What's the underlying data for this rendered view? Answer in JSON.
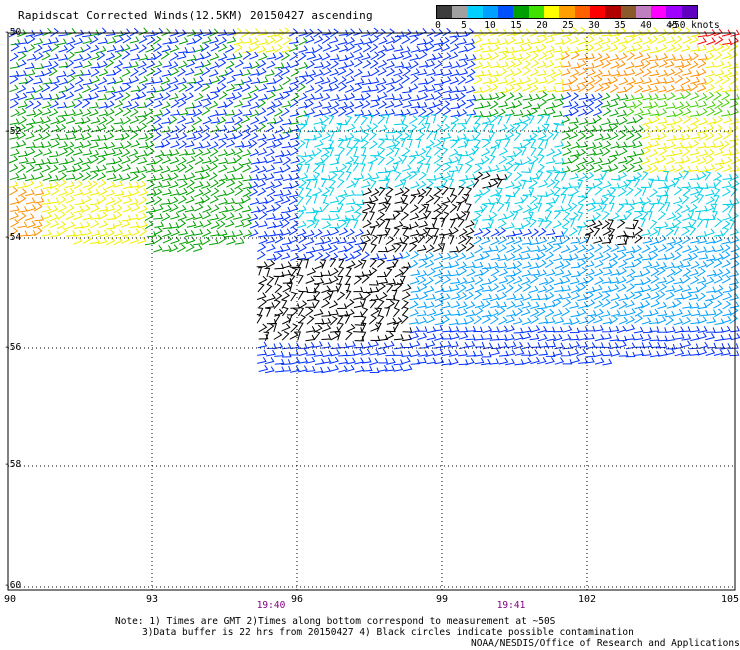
{
  "title": "Rapidscat Corrected Winds(12.5KM) 20150427 ascending",
  "scale": {
    "colors": [
      "#3c3c3c",
      "#a0a0a0",
      "#00d0ff",
      "#00a0ff",
      "#0050ff",
      "#00a000",
      "#40e000",
      "#ffff00",
      "#ffa000",
      "#ff6000",
      "#ff0000",
      "#b00000",
      "#8b5a2b",
      "#c080c0",
      "#ff00ff",
      "#a000ff",
      "#6000c0"
    ],
    "labels": [
      "0",
      "5",
      "10",
      "15",
      "20",
      "25",
      "30",
      "35",
      "40",
      "45",
      ">50 knots"
    ]
  },
  "map": {
    "lon_ticks": [
      "90",
      "93",
      "96",
      "99",
      "102",
      "105"
    ],
    "lat_ticks": [
      "-50",
      "-52",
      "-54",
      "-56",
      "-58",
      "-60"
    ],
    "time_labels": [
      "19:40",
      "19:41"
    ]
  },
  "notes": {
    "line1": "Note: 1) Times are GMT 2)Times along bottom correspond to measurement at ~50S",
    "line2": "3)Data buffer is 22 hrs from 20150427 4) Black circles indicate possible contamination",
    "credit": "NOAA/NESDIS/Office of Research and Applications"
  },
  "wind_palette": {
    "black": "#000000",
    "cyan": "#00d0e8",
    "lightblue": "#00a0ff",
    "blue": "#0030ff",
    "green": "#00a000",
    "lightgreen": "#40d000",
    "yellow": "#f0f000",
    "orange": "#ff9000",
    "red": "#ff0000"
  }
}
